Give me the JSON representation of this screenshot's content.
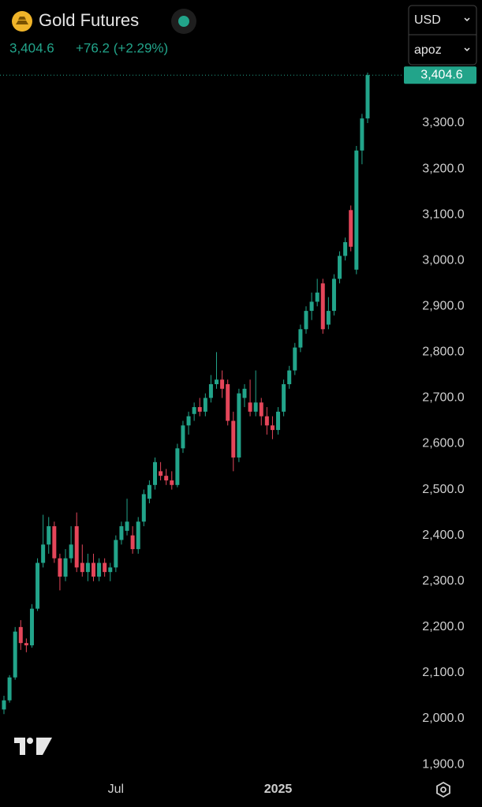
{
  "header": {
    "title": "Gold Futures",
    "change": "+76.2 (+2.29%)"
  },
  "toolbar": {
    "currency": "USD",
    "scale": "apoz"
  },
  "chart_data": {
    "type": "candlestick",
    "last_price": {
      "value": 3404.6,
      "label": "3,404.6"
    },
    "up_color": "#22a48a",
    "down_color": "#e4465a",
    "categories": [
      null,
      null,
      null,
      null,
      null,
      null,
      null,
      null,
      null,
      null,
      null,
      null,
      null,
      null,
      null,
      null,
      null,
      null,
      null,
      null,
      "Jul",
      null,
      null,
      null,
      null,
      null,
      null,
      null,
      null,
      null,
      null,
      null,
      null,
      null,
      null,
      null,
      null,
      null,
      null,
      null,
      null,
      null,
      null,
      null,
      null,
      null,
      null,
      null,
      null,
      "2025",
      null,
      null,
      null,
      null,
      null,
      null,
      null,
      null,
      null,
      null,
      null,
      null,
      null,
      null,
      null,
      null
    ],
    "open": [
      2020,
      2040,
      2090,
      2200,
      2165,
      2160,
      2240,
      2340,
      2380,
      2420,
      2350,
      2310,
      2350,
      2420,
      2340,
      2320,
      2340,
      2310,
      2340,
      2320,
      2330,
      2390,
      2410,
      2400,
      2370,
      2430,
      2480,
      2510,
      2540,
      2530,
      2520,
      2510,
      2590,
      2640,
      2665,
      2680,
      2670,
      2700,
      2730,
      2740,
      2730,
      2650,
      2570,
      2700,
      2690,
      2670,
      2690,
      2660,
      2640,
      2630,
      2670,
      2730,
      2760,
      2810,
      2850,
      2890,
      2910,
      2950,
      2860,
      2890,
      2960,
      3010,
      3110,
      2980,
      3240,
      3310
    ],
    "high": [
      2050,
      2095,
      2200,
      2215,
      2175,
      2250,
      2350,
      2445,
      2440,
      2430,
      2360,
      2370,
      2420,
      2450,
      2380,
      2360,
      2360,
      2350,
      2350,
      2340,
      2400,
      2430,
      2480,
      2420,
      2440,
      2500,
      2520,
      2570,
      2560,
      2545,
      2540,
      2600,
      2650,
      2670,
      2690,
      2700,
      2710,
      2750,
      2800,
      2760,
      2740,
      2670,
      2720,
      2730,
      2740,
      2760,
      2700,
      2680,
      2660,
      2680,
      2740,
      2770,
      2820,
      2860,
      2900,
      2930,
      2960,
      2960,
      2920,
      2970,
      3020,
      3050,
      3120,
      3250,
      3320,
      3410
    ],
    "low": [
      2010,
      2035,
      2085,
      2150,
      2145,
      2155,
      2235,
      2330,
      2360,
      2340,
      2280,
      2300,
      2340,
      2320,
      2310,
      2300,
      2300,
      2300,
      2310,
      2300,
      2320,
      2380,
      2400,
      2360,
      2360,
      2420,
      2470,
      2500,
      2520,
      2510,
      2500,
      2505,
      2580,
      2620,
      2650,
      2660,
      2660,
      2690,
      2720,
      2700,
      2640,
      2540,
      2560,
      2680,
      2660,
      2660,
      2640,
      2620,
      2610,
      2620,
      2660,
      2720,
      2750,
      2800,
      2840,
      2870,
      2900,
      2840,
      2850,
      2880,
      2950,
      3000,
      3020,
      2970,
      3210,
      3300
    ],
    "close": [
      2040,
      2090,
      2190,
      2165,
      2160,
      2240,
      2340,
      2380,
      2420,
      2350,
      2310,
      2350,
      2380,
      2330,
      2320,
      2340,
      2310,
      2340,
      2320,
      2330,
      2390,
      2420,
      2430,
      2370,
      2430,
      2490,
      2510,
      2560,
      2530,
      2520,
      2510,
      2590,
      2640,
      2660,
      2680,
      2670,
      2700,
      2730,
      2740,
      2720,
      2650,
      2570,
      2710,
      2720,
      2670,
      2690,
      2660,
      2640,
      2630,
      2670,
      2730,
      2760,
      2810,
      2850,
      2890,
      2910,
      2930,
      2850,
      2890,
      2960,
      3010,
      3040,
      3030,
      3240,
      3310,
      3404.6
    ],
    "ylim": [
      1864,
      3417
    ],
    "yticks": [
      {
        "value": 1900,
        "label": "1,900.0"
      },
      {
        "value": 2000,
        "label": "2,000.0"
      },
      {
        "value": 2100,
        "label": "2,100.0"
      },
      {
        "value": 2200,
        "label": "2,200.0"
      },
      {
        "value": 2300,
        "label": "2,300.0"
      },
      {
        "value": 2400,
        "label": "2,400.0"
      },
      {
        "value": 2500,
        "label": "2,500.0"
      },
      {
        "value": 2600,
        "label": "2,600.0"
      },
      {
        "value": 2700,
        "label": "2,700.0"
      },
      {
        "value": 2800,
        "label": "2,800.0"
      },
      {
        "value": 2900,
        "label": "2,900.0"
      },
      {
        "value": 3000,
        "label": "3,000.0"
      },
      {
        "value": 3100,
        "label": "3,100.0"
      },
      {
        "value": 3200,
        "label": "3,200.0"
      },
      {
        "value": 3300,
        "label": "3,300.0"
      }
    ]
  }
}
